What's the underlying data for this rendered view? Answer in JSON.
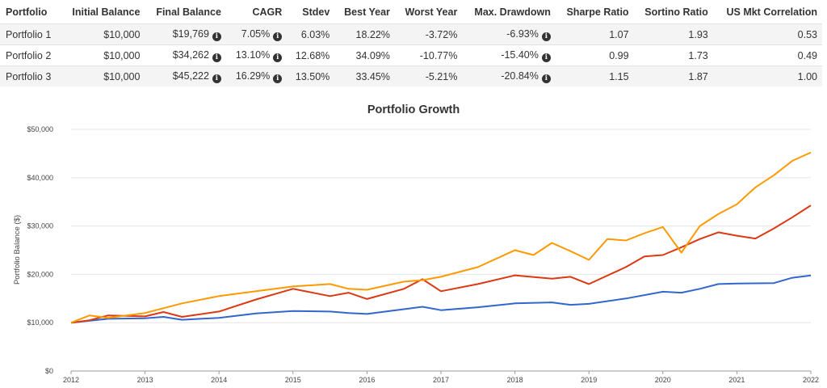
{
  "table": {
    "headers": [
      "Portfolio",
      "Initial Balance",
      "Final Balance",
      "CAGR",
      "Stdev",
      "Best Year",
      "Worst Year",
      "Max. Drawdown",
      "Sharpe Ratio",
      "Sortino Ratio",
      "US Mkt Correlation"
    ],
    "rows": [
      {
        "portfolio": "Portfolio 1",
        "initial": "$10,000",
        "final": "$19,769",
        "cagr": "7.05%",
        "stdev": "6.03%",
        "best": "18.22%",
        "worst": "-3.72%",
        "drawdown": "-6.93%",
        "sharpe": "1.07",
        "sortino": "1.93",
        "corr": "0.53"
      },
      {
        "portfolio": "Portfolio 2",
        "initial": "$10,000",
        "final": "$34,262",
        "cagr": "13.10%",
        "stdev": "12.68%",
        "best": "34.09%",
        "worst": "-10.77%",
        "drawdown": "-15.40%",
        "sharpe": "0.99",
        "sortino": "1.73",
        "corr": "0.49"
      },
      {
        "portfolio": "Portfolio 3",
        "initial": "$10,000",
        "final": "$45,222",
        "cagr": "16.29%",
        "stdev": "13.50%",
        "best": "33.45%",
        "worst": "-5.21%",
        "drawdown": "-20.84%",
        "sharpe": "1.15",
        "sortino": "1.87",
        "corr": "1.00"
      }
    ],
    "info_icon": "info-circle-icon"
  },
  "chart_data": {
    "type": "line",
    "title": "Portfolio Growth",
    "xlabel": "",
    "ylabel": "Portfolio Balance ($)",
    "xlim": [
      2012,
      2022
    ],
    "ylim": [
      0,
      50000
    ],
    "x_ticks": [
      "2012",
      "2013",
      "2014",
      "2015",
      "2016",
      "2017",
      "2018",
      "2019",
      "2020",
      "2021",
      "2022"
    ],
    "y_ticks": [
      "$0",
      "$10,000",
      "$20,000",
      "$30,000",
      "$40,000",
      "$50,000"
    ],
    "y_tick_values": [
      0,
      10000,
      20000,
      30000,
      40000,
      50000
    ],
    "grid": true,
    "legend": "none",
    "series": [
      {
        "color": "#3366cc",
        "x": [
          2012.0,
          2012.5,
          2013.0,
          2013.25,
          2013.5,
          2014.0,
          2014.5,
          2015.0,
          2015.5,
          2015.75,
          2016.0,
          2016.5,
          2016.75,
          2017.0,
          2017.5,
          2018.0,
          2018.5,
          2018.75,
          2019.0,
          2019.5,
          2020.0,
          2020.25,
          2020.5,
          2020.75,
          2021.0,
          2021.5,
          2021.75,
          2022.0
        ],
        "values": [
          10000,
          10800,
          10900,
          11200,
          10600,
          11000,
          11900,
          12400,
          12300,
          12000,
          11800,
          12800,
          13300,
          12600,
          13200,
          14000,
          14200,
          13700,
          13900,
          15000,
          16400,
          16200,
          17000,
          18000,
          18100,
          18200,
          19300,
          19769
        ]
      },
      {
        "color": "#dc3912",
        "x": [
          2012.0,
          2012.25,
          2012.5,
          2013.0,
          2013.25,
          2013.5,
          2014.0,
          2014.5,
          2015.0,
          2015.5,
          2015.75,
          2016.0,
          2016.5,
          2016.75,
          2017.0,
          2017.5,
          2018.0,
          2018.5,
          2018.75,
          2019.0,
          2019.5,
          2019.75,
          2020.0,
          2020.25,
          2020.5,
          2020.75,
          2021.0,
          2021.25,
          2021.5,
          2021.75,
          2022.0
        ],
        "values": [
          10000,
          10500,
          11500,
          11300,
          12200,
          11200,
          12300,
          14800,
          17000,
          15500,
          16200,
          14900,
          17000,
          19000,
          16500,
          18000,
          19800,
          19100,
          19500,
          18000,
          21500,
          23700,
          24000,
          25600,
          27300,
          28700,
          28000,
          27400,
          29500,
          31800,
          34262
        ]
      },
      {
        "color": "#ff9900",
        "x": [
          2012.0,
          2012.25,
          2012.5,
          2013.0,
          2013.5,
          2014.0,
          2014.5,
          2015.0,
          2015.5,
          2015.75,
          2016.0,
          2016.5,
          2016.75,
          2017.0,
          2017.5,
          2018.0,
          2018.25,
          2018.5,
          2018.75,
          2019.0,
          2019.25,
          2019.5,
          2019.75,
          2020.0,
          2020.25,
          2020.5,
          2020.75,
          2021.0,
          2021.25,
          2021.5,
          2021.75,
          2022.0
        ],
        "values": [
          10000,
          11500,
          11000,
          12000,
          14000,
          15500,
          16500,
          17500,
          18000,
          17000,
          16800,
          18500,
          18800,
          19500,
          21500,
          25000,
          24000,
          26500,
          24800,
          23000,
          27300,
          27000,
          28500,
          29800,
          24500,
          30000,
          32500,
          34500,
          38000,
          40500,
          43500,
          45222
        ]
      }
    ]
  }
}
